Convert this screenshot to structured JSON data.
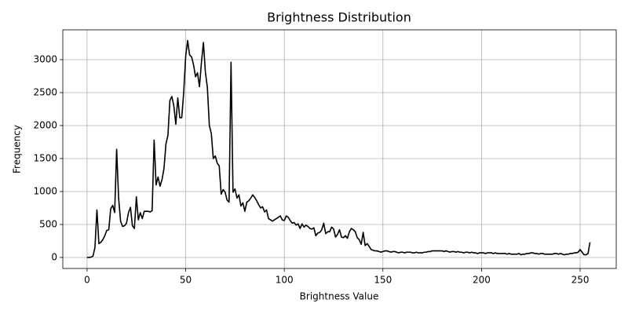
{
  "chart_data": {
    "type": "line",
    "title": "Brightness Distribution",
    "xlabel": "Brightness Value",
    "ylabel": "Frequency",
    "x": [
      0,
      1,
      2,
      3,
      4,
      5,
      6,
      7,
      8,
      9,
      10,
      11,
      12,
      13,
      14,
      15,
      16,
      17,
      18,
      19,
      20,
      21,
      22,
      23,
      24,
      25,
      26,
      27,
      28,
      29,
      30,
      31,
      32,
      33,
      34,
      35,
      36,
      37,
      38,
      39,
      40,
      41,
      42,
      43,
      44,
      45,
      46,
      47,
      48,
      49,
      50,
      51,
      52,
      53,
      54,
      55,
      56,
      57,
      58,
      59,
      60,
      61,
      62,
      63,
      64,
      65,
      66,
      67,
      68,
      69,
      70,
      71,
      72,
      73,
      74,
      75,
      76,
      77,
      78,
      79,
      80,
      81,
      82,
      83,
      84,
      85,
      86,
      87,
      88,
      89,
      90,
      91,
      92,
      93,
      94,
      95,
      96,
      97,
      98,
      99,
      100,
      101,
      102,
      103,
      104,
      105,
      106,
      107,
      108,
      109,
      110,
      111,
      112,
      113,
      114,
      115,
      116,
      117,
      118,
      119,
      120,
      121,
      122,
      123,
      124,
      125,
      126,
      127,
      128,
      129,
      130,
      131,
      132,
      133,
      134,
      135,
      136,
      137,
      138,
      139,
      140,
      141,
      142,
      143,
      144,
      145,
      146,
      147,
      148,
      149,
      150,
      151,
      152,
      153,
      154,
      155,
      156,
      157,
      158,
      159,
      160,
      161,
      162,
      163,
      164,
      165,
      166,
      167,
      168,
      169,
      170,
      171,
      172,
      173,
      174,
      175,
      176,
      177,
      178,
      179,
      180,
      181,
      182,
      183,
      184,
      185,
      186,
      187,
      188,
      189,
      190,
      191,
      192,
      193,
      194,
      195,
      196,
      197,
      198,
      199,
      200,
      201,
      202,
      203,
      204,
      205,
      206,
      207,
      208,
      209,
      210,
      211,
      212,
      213,
      214,
      215,
      216,
      217,
      218,
      219,
      220,
      221,
      222,
      223,
      224,
      225,
      226,
      227,
      228,
      229,
      230,
      231,
      232,
      233,
      234,
      235,
      236,
      237,
      238,
      239,
      240,
      241,
      242,
      243,
      244,
      245,
      246,
      247,
      248,
      249,
      250,
      251,
      252,
      253,
      254,
      255
    ],
    "values": [
      0,
      0,
      5,
      20,
      150,
      720,
      210,
      230,
      270,
      330,
      410,
      420,
      740,
      790,
      680,
      1640,
      900,
      550,
      470,
      480,
      520,
      680,
      760,
      480,
      440,
      920,
      570,
      680,
      590,
      700,
      700,
      700,
      690,
      710,
      1780,
      1100,
      1220,
      1080,
      1180,
      1350,
      1720,
      1850,
      2380,
      2440,
      2300,
      2020,
      2420,
      2120,
      2120,
      2500,
      3050,
      3290,
      3070,
      3040,
      2920,
      2740,
      2800,
      2590,
      2960,
      3260,
      2810,
      2580,
      2000,
      1880,
      1500,
      1540,
      1430,
      1390,
      960,
      1030,
      990,
      870,
      840,
      2960,
      990,
      1040,
      900,
      950,
      780,
      830,
      700,
      840,
      860,
      900,
      950,
      910,
      860,
      800,
      750,
      770,
      690,
      720,
      590,
      570,
      550,
      570,
      590,
      610,
      630,
      570,
      560,
      630,
      610,
      560,
      520,
      530,
      490,
      510,
      440,
      510,
      460,
      490,
      470,
      440,
      430,
      450,
      330,
      370,
      380,
      420,
      520,
      360,
      390,
      390,
      460,
      430,
      310,
      350,
      420,
      310,
      300,
      330,
      290,
      390,
      440,
      420,
      390,
      300,
      270,
      200,
      380,
      180,
      210,
      170,
      120,
      110,
      100,
      100,
      90,
      80,
      90,
      100,
      100,
      90,
      80,
      90,
      90,
      80,
      70,
      80,
      80,
      70,
      80,
      80,
      80,
      70,
      70,
      80,
      70,
      70,
      70,
      80,
      80,
      90,
      90,
      100,
      100,
      100,
      100,
      100,
      100,
      90,
      100,
      90,
      80,
      90,
      90,
      80,
      90,
      80,
      80,
      70,
      80,
      80,
      70,
      80,
      70,
      70,
      60,
      70,
      70,
      70,
      60,
      70,
      70,
      70,
      60,
      70,
      60,
      60,
      60,
      60,
      60,
      50,
      60,
      50,
      50,
      50,
      50,
      60,
      40,
      50,
      50,
      60,
      60,
      70,
      70,
      60,
      60,
      50,
      60,
      60,
      50,
      50,
      50,
      50,
      50,
      60,
      60,
      50,
      60,
      50,
      40,
      50,
      50,
      60,
      60,
      70,
      70,
      80,
      120,
      80,
      40,
      40,
      60,
      230
    ],
    "color": "#000000",
    "xlim": [
      -12.3,
      268.3
    ],
    "ylim": [
      -167,
      3452
    ],
    "xticks": [
      0,
      50,
      100,
      150,
      200,
      250
    ],
    "yticks": [
      0,
      500,
      1000,
      1500,
      2000,
      2500,
      3000
    ],
    "grid": true
  }
}
